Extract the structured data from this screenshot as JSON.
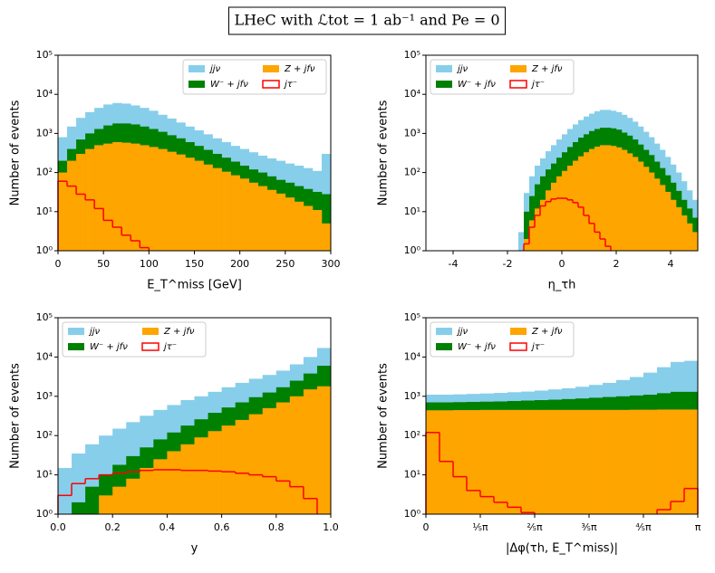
{
  "title": "LHeC with ℒtot = 1 ab⁻¹ and Pe = 0",
  "chart_data": [
    {
      "type": "histogram",
      "yscale": "log",
      "legend_loc": "upper right",
      "xlabel": "E_T^miss [GeV]",
      "ylabel": "Number of events",
      "xlim": [
        0,
        300
      ],
      "xticks": [
        0,
        50,
        100,
        150,
        200,
        250,
        300
      ],
      "ylim": [
        1,
        100000
      ],
      "yticks": [
        {
          "value": 1,
          "label": "10⁰"
        },
        {
          "value": 10,
          "label": "10¹"
        },
        {
          "value": 100,
          "label": "10²"
        },
        {
          "value": 1000,
          "label": "10³"
        },
        {
          "value": 10000,
          "label": "10⁴"
        },
        {
          "value": 100000,
          "label": "10⁵"
        }
      ],
      "bins": [
        0,
        10,
        20,
        30,
        40,
        50,
        60,
        70,
        80,
        90,
        100,
        110,
        120,
        130,
        140,
        150,
        160,
        170,
        180,
        190,
        200,
        210,
        220,
        230,
        240,
        250,
        260,
        270,
        280,
        290,
        300
      ],
      "series": [
        {
          "name": "jjν",
          "color": "#87ceeb",
          "histtype": "stepfilled",
          "values": [
            800,
            1500,
            2500,
            3500,
            4500,
            5500,
            6000,
            5800,
            5200,
            4500,
            3800,
            3000,
            2400,
            1900,
            1500,
            1200,
            950,
            750,
            600,
            480,
            400,
            330,
            270,
            230,
            200,
            170,
            150,
            130,
            110,
            300
          ]
        },
        {
          "name": "W⁻ + jfν",
          "color": "#008000",
          "histtype": "stepfilled",
          "values": [
            200,
            400,
            700,
            1000,
            1300,
            1600,
            1800,
            1800,
            1700,
            1500,
            1300,
            1100,
            900,
            750,
            600,
            480,
            380,
            300,
            240,
            190,
            150,
            120,
            100,
            80,
            65,
            55,
            45,
            38,
            32,
            28
          ]
        },
        {
          "name": "Z + jfν",
          "color": "#ffa500",
          "histtype": "stepfilled",
          "values": [
            100,
            200,
            300,
            400,
            500,
            550,
            600,
            580,
            550,
            500,
            450,
            400,
            340,
            290,
            240,
            200,
            160,
            130,
            105,
            85,
            70,
            55,
            45,
            36,
            29,
            23,
            18,
            14,
            11,
            5
          ]
        },
        {
          "name": "jτ⁻",
          "color": "#ff0000",
          "histtype": "step",
          "values": [
            60,
            45,
            28,
            20,
            12,
            6,
            4,
            2.5,
            1.8,
            1.2,
            null,
            null,
            null,
            null,
            null,
            null,
            null,
            null,
            null,
            null,
            null,
            null,
            null,
            null,
            null,
            null,
            null,
            null,
            null,
            null
          ]
        }
      ]
    },
    {
      "type": "histogram",
      "yscale": "log",
      "legend_loc": "upper left",
      "xlabel": "η_τh",
      "ylabel": "Number of events",
      "xlim": [
        -5,
        5
      ],
      "xticks": [
        -4,
        -2,
        0,
        2,
        4
      ],
      "ylim": [
        1,
        100000
      ],
      "yticks": [
        {
          "value": 1,
          "label": "10⁰"
        },
        {
          "value": 10,
          "label": "10¹"
        },
        {
          "value": 100,
          "label": "10²"
        },
        {
          "value": 1000,
          "label": "10³"
        },
        {
          "value": 10000,
          "label": "10⁴"
        },
        {
          "value": 100000,
          "label": "10⁵"
        }
      ],
      "bins": [
        -1.6,
        -1.4,
        -1.2,
        -1.0,
        -0.8,
        -0.6,
        -0.4,
        -0.2,
        0,
        0.2,
        0.4,
        0.6,
        0.8,
        1.0,
        1.2,
        1.4,
        1.6,
        1.8,
        2.0,
        2.2,
        2.4,
        2.6,
        2.8,
        3.0,
        3.2,
        3.4,
        3.6,
        3.8,
        4.0,
        4.2,
        4.4,
        4.6,
        4.8,
        5.0
      ],
      "series": [
        {
          "name": "jjν",
          "color": "#87ceeb",
          "histtype": "stepfilled",
          "values": [
            3,
            30,
            80,
            150,
            230,
            350,
            500,
            700,
            950,
            1300,
            1700,
            2200,
            2700,
            3200,
            3700,
            4000,
            4000,
            3800,
            3500,
            3000,
            2500,
            2000,
            1500,
            1100,
            800,
            550,
            380,
            250,
            160,
            100,
            60,
            35,
            20
          ]
        },
        {
          "name": "W⁻ + jfν",
          "color": "#008000",
          "histtype": "stepfilled",
          "values": [
            1,
            10,
            25,
            50,
            80,
            120,
            170,
            240,
            330,
            450,
            600,
            780,
            950,
            1150,
            1300,
            1400,
            1400,
            1350,
            1250,
            1050,
            880,
            700,
            520,
            380,
            280,
            190,
            130,
            85,
            55,
            34,
            20,
            12,
            7
          ]
        },
        {
          "name": "Z + jfν",
          "color": "#ffa500",
          "histtype": "stepfilled",
          "values": [
            null,
            2,
            6,
            12,
            20,
            35,
            55,
            80,
            110,
            150,
            200,
            260,
            330,
            400,
            460,
            500,
            500,
            480,
            440,
            380,
            310,
            250,
            190,
            140,
            100,
            70,
            48,
            32,
            20,
            13,
            8,
            5,
            3
          ]
        },
        {
          "name": "jτ⁻",
          "color": "#ff0000",
          "histtype": "step",
          "values": [
            null,
            1.5,
            4,
            8,
            14,
            18,
            21,
            22,
            22,
            20,
            17,
            13,
            8,
            5,
            3,
            2,
            1.3,
            null,
            null,
            null,
            null,
            null,
            null,
            null,
            null,
            null,
            null,
            null,
            null,
            null,
            null,
            null,
            null
          ]
        }
      ]
    },
    {
      "type": "histogram",
      "yscale": "log",
      "legend_loc": "upper left",
      "xlabel": "y",
      "ylabel": "Number of events",
      "xlim": [
        0,
        1
      ],
      "xticks": [
        {
          "value": 0,
          "label": "0.0"
        },
        0.2,
        0.4,
        0.6,
        0.8,
        {
          "value": 1,
          "label": "1.0"
        }
      ],
      "ylim": [
        1,
        100000
      ],
      "yticks": [
        {
          "value": 1,
          "label": "10⁰"
        },
        {
          "value": 10,
          "label": "10¹"
        },
        {
          "value": 100,
          "label": "10²"
        },
        {
          "value": 1000,
          "label": "10³"
        },
        {
          "value": 10000,
          "label": "10⁴"
        },
        {
          "value": 100000,
          "label": "10⁵"
        }
      ],
      "bins": [
        0,
        0.05,
        0.1,
        0.15,
        0.2,
        0.25,
        0.3,
        0.35,
        0.4,
        0.45,
        0.5,
        0.55,
        0.6,
        0.65,
        0.7,
        0.75,
        0.8,
        0.85,
        0.9,
        0.95,
        1.0
      ],
      "series": [
        {
          "name": "jjν",
          "color": "#87ceeb",
          "histtype": "stepfilled",
          "values": [
            15,
            35,
            60,
            100,
            150,
            220,
            320,
            450,
            600,
            800,
            1000,
            1300,
            1700,
            2200,
            2800,
            3500,
            4500,
            6500,
            10000,
            17000
          ]
        },
        {
          "name": "W⁻ + jfν",
          "color": "#008000",
          "histtype": "stepfilled",
          "values": [
            1,
            2,
            5,
            10,
            18,
            30,
            50,
            80,
            120,
            180,
            260,
            380,
            520,
            700,
            950,
            1250,
            1700,
            2500,
            3800,
            6000
          ]
        },
        {
          "name": "Z + jfν",
          "color": "#ffa500",
          "histtype": "stepfilled",
          "values": [
            null,
            null,
            null,
            3,
            5,
            8,
            15,
            25,
            40,
            60,
            90,
            130,
            180,
            250,
            350,
            500,
            700,
            1000,
            1500,
            1800
          ]
        },
        {
          "name": "jτ⁻",
          "color": "#ff0000",
          "histtype": "step",
          "values": [
            3,
            6,
            8,
            10,
            11,
            12,
            13,
            13.5,
            13.5,
            13,
            13,
            12.5,
            12,
            11,
            10,
            9,
            7,
            5,
            2.5,
            null
          ]
        }
      ]
    },
    {
      "type": "histogram",
      "yscale": "log",
      "legend_loc": "upper left",
      "xlabel": "|Δφ(τh, E_T^miss)|",
      "ylabel": "Number of events",
      "xlim": [
        0,
        3.1416
      ],
      "xticks": [
        0,
        {
          "value": 0.6283,
          "label": "⅕π"
        },
        {
          "value": 1.2566,
          "label": "⅖π"
        },
        {
          "value": 1.885,
          "label": "⅗π"
        },
        {
          "value": 2.5133,
          "label": "⅘π"
        },
        {
          "value": 3.1416,
          "label": "π"
        }
      ],
      "ylim": [
        1,
        100000
      ],
      "yticks": [
        {
          "value": 1,
          "label": "10⁰"
        },
        {
          "value": 10,
          "label": "10¹"
        },
        {
          "value": 100,
          "label": "10²"
        },
        {
          "value": 1000,
          "label": "10³"
        },
        {
          "value": 10000,
          "label": "10⁴"
        },
        {
          "value": 100000,
          "label": "10⁵"
        }
      ],
      "bins": [
        0,
        0.1571,
        0.3142,
        0.4712,
        0.6283,
        0.7854,
        0.9425,
        1.0996,
        1.2566,
        1.4137,
        1.5708,
        1.7279,
        1.885,
        2.042,
        2.1991,
        2.3562,
        2.5133,
        2.6704,
        2.8274,
        2.9845,
        3.1416
      ],
      "series": [
        {
          "name": "jjν",
          "color": "#87ceeb",
          "histtype": "stepfilled",
          "values": [
            1100,
            1100,
            1120,
            1150,
            1180,
            1220,
            1270,
            1320,
            1400,
            1500,
            1600,
            1750,
            1950,
            2200,
            2600,
            3100,
            4000,
            5500,
            7500,
            8000
          ]
        },
        {
          "name": "W⁻ + jfν",
          "color": "#008000",
          "histtype": "stepfilled",
          "values": [
            700,
            700,
            710,
            720,
            730,
            740,
            760,
            780,
            800,
            820,
            850,
            880,
            920,
            960,
            1000,
            1050,
            1100,
            1200,
            1300,
            1300
          ]
        },
        {
          "name": "Z + jfν",
          "color": "#ffa500",
          "histtype": "stepfilled",
          "values": [
            440,
            440,
            445,
            445,
            450,
            450,
            450,
            450,
            450,
            450,
            450,
            450,
            450,
            450,
            450,
            455,
            455,
            460,
            460,
            460
          ]
        },
        {
          "name": "jτ⁻",
          "color": "#ff0000",
          "histtype": "step",
          "values": [
            120,
            22,
            9,
            4,
            2.8,
            2,
            1.5,
            1.1,
            null,
            null,
            null,
            null,
            null,
            null,
            null,
            null,
            null,
            1.3,
            2.1,
            4.5
          ]
        }
      ]
    }
  ]
}
